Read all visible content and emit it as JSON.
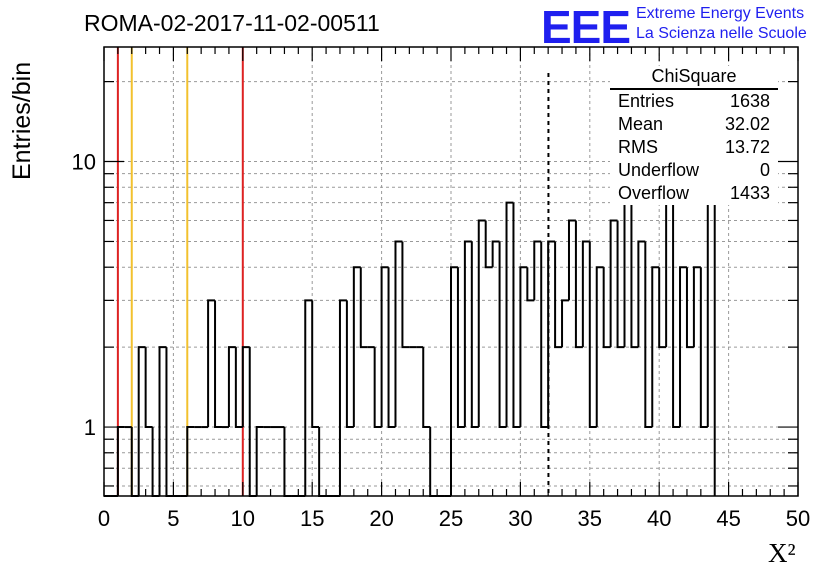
{
  "title": "ROMA-02-2017-11-02-00511",
  "logo": {
    "mark": "EEE",
    "line1": "Extreme Energy Events",
    "line2": "La Scienza nelle Scuole",
    "color": "#1f1fef"
  },
  "stats_box": {
    "title": "ChiSquare",
    "rows": [
      {
        "label": "Entries",
        "value": "1638"
      },
      {
        "label": "Mean",
        "value": "32.02"
      },
      {
        "label": "RMS",
        "value": "13.72"
      },
      {
        "label": "Underflow",
        "value": "0"
      },
      {
        "label": "Overflow",
        "value": "1433"
      }
    ]
  },
  "chart_data": {
    "type": "histogram",
    "xlabel": "X²",
    "ylabel": "Entries/bin",
    "xlim": [
      0,
      50
    ],
    "ylim": [
      0.55,
      27
    ],
    "yscale": "log",
    "grid": true,
    "x_ticks": [
      "0",
      "5",
      "10",
      "15",
      "20",
      "25",
      "30",
      "35",
      "40",
      "45",
      "50"
    ],
    "y_ticks": [
      "1",
      "10"
    ],
    "bin_width": 0.5,
    "bin_values": [
      0,
      0,
      1,
      1,
      0,
      2,
      1,
      0,
      2,
      0,
      0,
      0,
      1,
      1,
      1,
      3,
      1,
      1,
      2,
      1,
      2,
      0,
      1,
      1,
      1,
      1,
      0,
      0,
      0,
      3,
      1,
      0,
      0,
      0,
      3,
      1,
      4,
      2,
      2,
      1,
      4,
      1,
      5,
      2,
      2,
      2,
      1,
      0,
      0,
      0,
      4,
      1,
      5,
      1,
      6,
      4,
      5,
      1,
      7,
      1,
      4,
      3,
      5,
      1,
      5,
      2,
      3,
      6,
      2,
      5,
      1,
      4,
      2,
      6,
      2,
      9,
      2,
      5,
      1,
      4,
      2,
      9,
      1,
      4,
      2,
      4,
      1,
      15
    ],
    "vertical_lines": [
      {
        "x": 1,
        "color": "#dd2222",
        "style": "solid"
      },
      {
        "x": 2,
        "color": "#f2c12e",
        "style": "solid"
      },
      {
        "x": 6,
        "color": "#f2c12e",
        "style": "solid"
      },
      {
        "x": 10,
        "color": "#dd2222",
        "style": "solid"
      },
      {
        "x": 32.02,
        "color": "#000000",
        "style": "dashed"
      }
    ]
  }
}
